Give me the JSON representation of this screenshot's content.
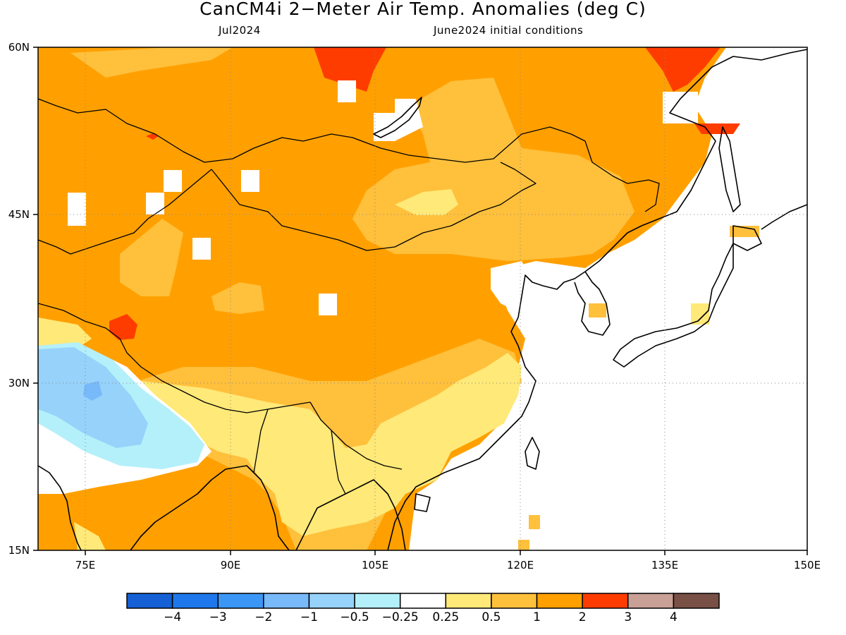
{
  "title": "CanCM4i 2−Meter Air Temp. Anomalies (deg C)",
  "subtitle_left": "Jul2024",
  "subtitle_right": "June2024 initial conditions",
  "map": {
    "lon_range": [
      68,
      150
    ],
    "lat_range": [
      15,
      60
    ],
    "lon_ticks": [
      75,
      90,
      105,
      120,
      135,
      150
    ],
    "lat_ticks": [
      60,
      45,
      30,
      15
    ],
    "lon_tick_labels": [
      "75E",
      "90E",
      "105E",
      "120E",
      "135E",
      "150E"
    ],
    "lat_tick_labels": [
      "60N",
      "45N",
      "30N",
      "15N"
    ]
  },
  "colorbar": {
    "colors": [
      "#1560d4",
      "#1f78eb",
      "#3c96f5",
      "#78b9fa",
      "#96d2fa",
      "#b4f0fa",
      "#ffffff",
      "#ffe978",
      "#ffc03c",
      "#ffa000",
      "#ff3c00",
      "#c8a096",
      "#785046"
    ],
    "labels": [
      "−4",
      "−3",
      "−2",
      "−1",
      "−0.5",
      "−0.25",
      "0.25",
      "0.5",
      "1",
      "2",
      "3",
      "4"
    ]
  }
}
